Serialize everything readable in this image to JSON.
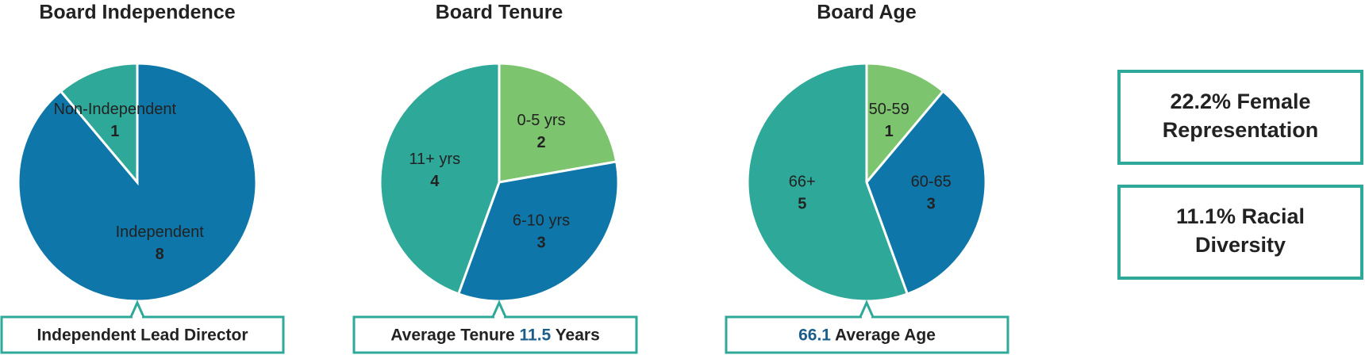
{
  "chart_data": [
    {
      "type": "pie",
      "title": "Board Independence",
      "categories": [
        "Independent",
        "Non-Independent"
      ],
      "values": [
        8,
        1
      ],
      "colors": [
        "#0e76a8",
        "#2ea899"
      ],
      "callout": {
        "before": "Independent Lead Director"
      }
    },
    {
      "type": "pie",
      "title": "Board Tenure",
      "categories": [
        "0-5 yrs",
        "6-10 yrs",
        "11+ yrs"
      ],
      "values": [
        2,
        3,
        4
      ],
      "colors": [
        "#7dc46e",
        "#0e76a8",
        "#2ea899"
      ],
      "callout": {
        "before": "Average Tenure",
        "value": 11.5,
        "after": "Years"
      }
    },
    {
      "type": "pie",
      "title": "Board Age",
      "categories": [
        "50-59",
        "60-65",
        "66+"
      ],
      "values": [
        1,
        3,
        5
      ],
      "colors": [
        "#7dc46e",
        "#0e76a8",
        "#2ea899"
      ],
      "callout": {
        "value": 66.1,
        "after": "Average Age"
      }
    }
  ],
  "highlights": [
    {
      "lines": [
        "22.2% Female",
        "Representation"
      ]
    },
    {
      "lines": [
        "11.1% Racial",
        "Diversity"
      ]
    }
  ]
}
